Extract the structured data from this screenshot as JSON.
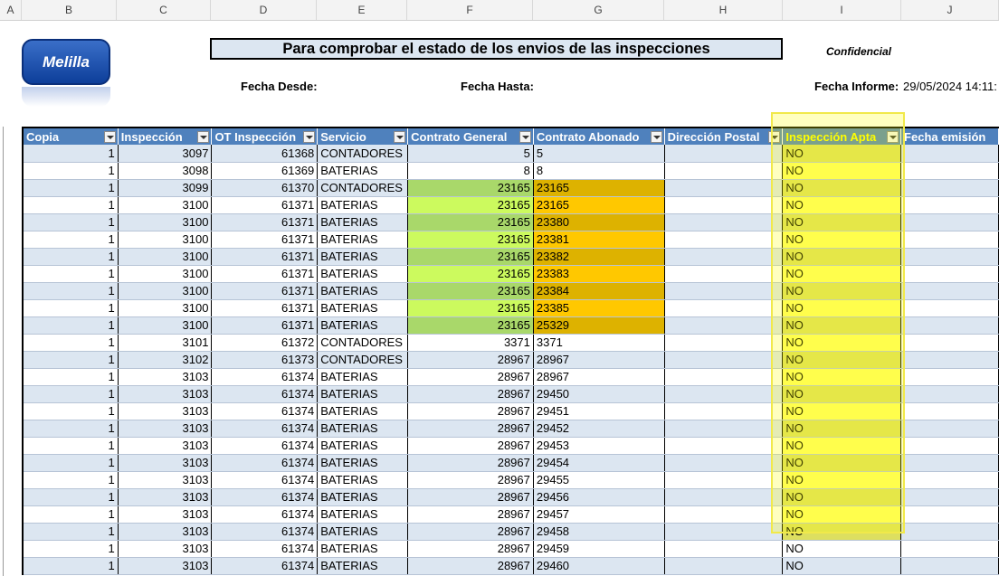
{
  "column_letters": [
    "A",
    "B",
    "C",
    "D",
    "E",
    "F",
    "G",
    "H",
    "I",
    "J"
  ],
  "report": {
    "title": "Para comprobar el estado de los envios de las inspecciones",
    "confidential": "Confidencial",
    "fecha_desde_label": "Fecha Desde:",
    "fecha_hasta_label": "Fecha Hasta:",
    "fecha_informe_label": "Fecha Informe:",
    "fecha_informe_value": "29/05/2024 14:11:",
    "logo_text": "Melilla"
  },
  "table": {
    "headers": [
      "Copia",
      "Inspección",
      "OT Inspección",
      "Servicio",
      "Contrato General",
      "Contrato Abonado",
      "Dirección Postal",
      "Inspección Apta",
      "Fecha emisión"
    ],
    "rows": [
      [
        "1",
        "3097",
        "61368",
        "CONTADORES",
        "5",
        "5",
        "",
        "NO",
        ""
      ],
      [
        "1",
        "3098",
        "61369",
        "BATERIAS",
        "8",
        "8",
        "",
        "NO",
        ""
      ],
      [
        "1",
        "3099",
        "61370",
        "CONTADORES",
        "23165",
        "23165",
        "",
        "NO",
        ""
      ],
      [
        "1",
        "3100",
        "61371",
        "BATERIAS",
        "23165",
        "23165",
        "",
        "NO",
        ""
      ],
      [
        "1",
        "3100",
        "61371",
        "BATERIAS",
        "23165",
        "23380",
        "",
        "NO",
        ""
      ],
      [
        "1",
        "3100",
        "61371",
        "BATERIAS",
        "23165",
        "23381",
        "",
        "NO",
        ""
      ],
      [
        "1",
        "3100",
        "61371",
        "BATERIAS",
        "23165",
        "23382",
        "",
        "NO",
        ""
      ],
      [
        "1",
        "3100",
        "61371",
        "BATERIAS",
        "23165",
        "23383",
        "",
        "NO",
        ""
      ],
      [
        "1",
        "3100",
        "61371",
        "BATERIAS",
        "23165",
        "23384",
        "",
        "NO",
        ""
      ],
      [
        "1",
        "3100",
        "61371",
        "BATERIAS",
        "23165",
        "23385",
        "",
        "NO",
        ""
      ],
      [
        "1",
        "3100",
        "61371",
        "BATERIAS",
        "23165",
        "25329",
        "",
        "NO",
        ""
      ],
      [
        "1",
        "3101",
        "61372",
        "CONTADORES",
        "3371",
        "3371",
        "",
        "NO",
        ""
      ],
      [
        "1",
        "3102",
        "61373",
        "CONTADORES",
        "28967",
        "28967",
        "",
        "NO",
        ""
      ],
      [
        "1",
        "3103",
        "61374",
        "BATERIAS",
        "28967",
        "28967",
        "",
        "NO",
        ""
      ],
      [
        "1",
        "3103",
        "61374",
        "BATERIAS",
        "28967",
        "29450",
        "",
        "NO",
        ""
      ],
      [
        "1",
        "3103",
        "61374",
        "BATERIAS",
        "28967",
        "29451",
        "",
        "NO",
        ""
      ],
      [
        "1",
        "3103",
        "61374",
        "BATERIAS",
        "28967",
        "29452",
        "",
        "NO",
        ""
      ],
      [
        "1",
        "3103",
        "61374",
        "BATERIAS",
        "28967",
        "29453",
        "",
        "NO",
        ""
      ],
      [
        "1",
        "3103",
        "61374",
        "BATERIAS",
        "28967",
        "29454",
        "",
        "NO",
        ""
      ],
      [
        "1",
        "3103",
        "61374",
        "BATERIAS",
        "28967",
        "29455",
        "",
        "NO",
        ""
      ],
      [
        "1",
        "3103",
        "61374",
        "BATERIAS",
        "28967",
        "29456",
        "",
        "NO",
        ""
      ],
      [
        "1",
        "3103",
        "61374",
        "BATERIAS",
        "28967",
        "29457",
        "",
        "NO",
        ""
      ],
      [
        "1",
        "3103",
        "61374",
        "BATERIAS",
        "28967",
        "29458",
        "",
        "NO",
        ""
      ],
      [
        "1",
        "3103",
        "61374",
        "BATERIAS",
        "28967",
        "29459",
        "",
        "NO",
        ""
      ],
      [
        "1",
        "3103",
        "61374",
        "BATERIAS",
        "28967",
        "29460",
        "",
        "NO",
        ""
      ]
    ]
  },
  "colors": {
    "header_bg": "#4f81bd",
    "band_bg": "#dce6f1",
    "highlight_green": "#ccfa5e",
    "highlight_orange": "#ffc800",
    "highlight_yellow": "#ffff00"
  }
}
